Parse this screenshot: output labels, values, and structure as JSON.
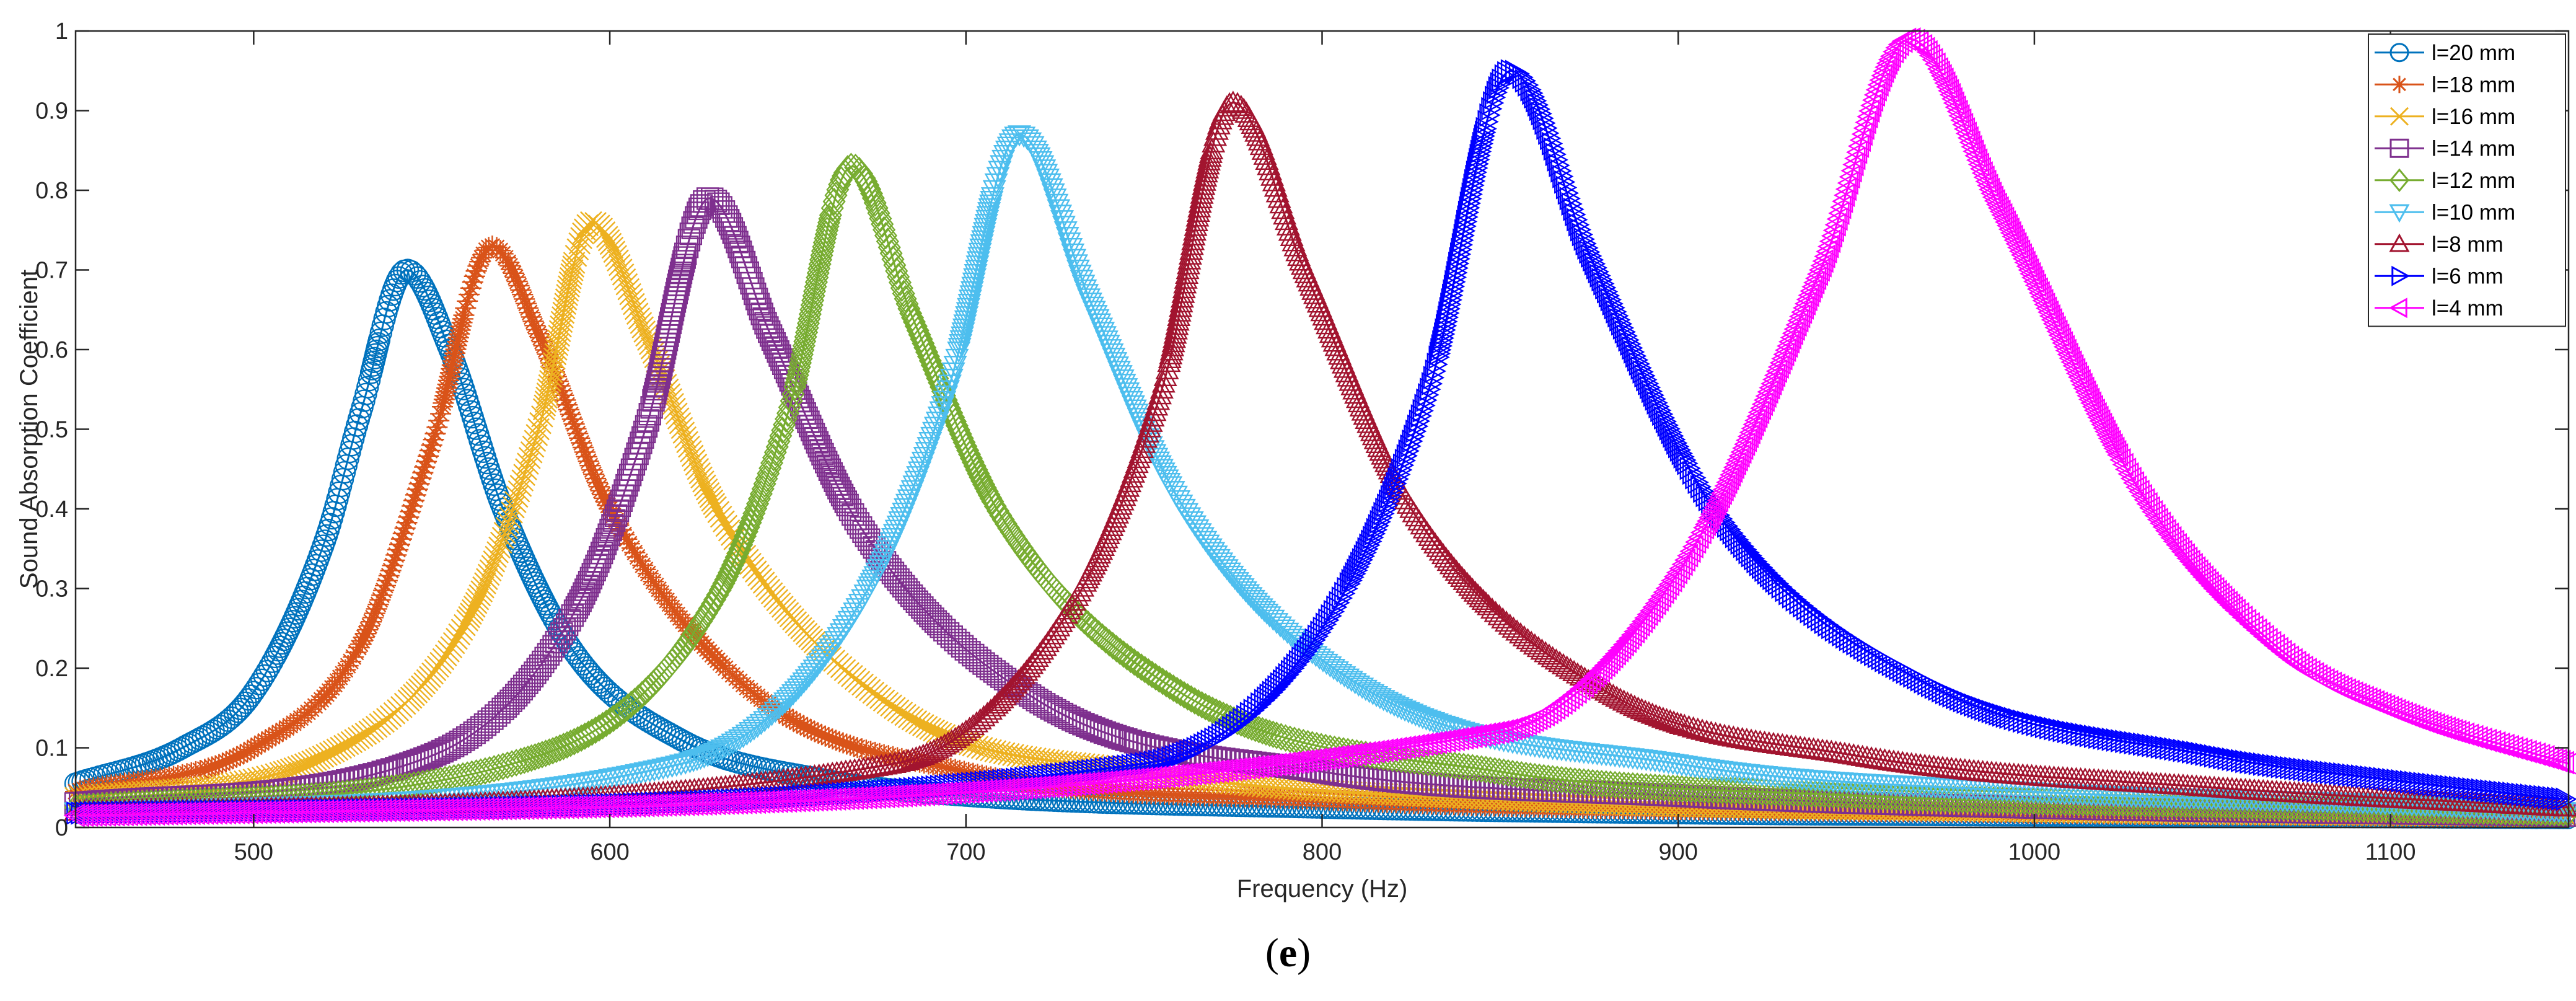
{
  "caption": {
    "open": "(",
    "letter": "e",
    "close": ")"
  },
  "chart_data": {
    "type": "line",
    "title": "",
    "xlabel": "Frequency (Hz)",
    "ylabel": "Sound Absorption Coefficient",
    "xlim": [
      450,
      1150
    ],
    "ylim": [
      0,
      1
    ],
    "xticks": [
      500,
      600,
      700,
      800,
      900,
      1000,
      1100
    ],
    "yticks": [
      0,
      0.1,
      0.2,
      0.3,
      0.4,
      0.5,
      0.6,
      0.7,
      0.8,
      0.9,
      1
    ],
    "xtick_labels": [
      "500",
      "600",
      "700",
      "800",
      "900",
      "1000",
      "1100"
    ],
    "ytick_labels": [
      "0",
      "0.1",
      "0.2",
      "0.3",
      "0.4",
      "0.5",
      "0.6",
      "0.7",
      "0.8",
      "0.9",
      "1"
    ],
    "grid": false,
    "legend_position": "top-right",
    "series": [
      {
        "name": "l=20 mm",
        "color": "#0072BD",
        "marker": "circle",
        "peak_x": 543,
        "peak_y": 0.7,
        "start_y": 0.055,
        "end_y": 0.012,
        "x": [
          450,
          480,
          500,
          520,
          530,
          543,
          555,
          570,
          590,
          620,
          660,
          700,
          800,
          900,
          1000,
          1150
        ],
        "y": [
          0.055,
          0.1,
          0.17,
          0.36,
          0.52,
          0.7,
          0.6,
          0.4,
          0.22,
          0.11,
          0.06,
          0.04,
          0.025,
          0.018,
          0.015,
          0.012
        ]
      },
      {
        "name": "l=18 mm",
        "color": "#D95319",
        "marker": "asterisk",
        "peak_x": 567,
        "peak_y": 0.73,
        "start_y": 0.045,
        "end_y": 0.013,
        "x": [
          450,
          500,
          530,
          550,
          567,
          580,
          600,
          640,
          700,
          800,
          1000,
          1150
        ],
        "y": [
          0.045,
          0.1,
          0.23,
          0.48,
          0.73,
          0.62,
          0.4,
          0.17,
          0.07,
          0.035,
          0.018,
          0.013
        ]
      },
      {
        "name": "l=16 mm",
        "color": "#EDB120",
        "marker": "x",
        "peak_x": 595,
        "peak_y": 0.76,
        "start_y": 0.037,
        "end_y": 0.014,
        "x": [
          450,
          520,
          560,
          580,
          595,
          610,
          630,
          680,
          750,
          850,
          1000,
          1150
        ],
        "y": [
          0.037,
          0.09,
          0.26,
          0.5,
          0.76,
          0.62,
          0.4,
          0.15,
          0.07,
          0.035,
          0.02,
          0.014
        ]
      },
      {
        "name": "l=14 mm",
        "color": "#7E2F8E",
        "marker": "square",
        "peak_x": 628,
        "peak_y": 0.79,
        "start_y": 0.03,
        "end_y": 0.015,
        "x": [
          450,
          550,
          590,
          610,
          628,
          645,
          670,
          720,
          800,
          900,
          1000,
          1150
        ],
        "y": [
          0.03,
          0.09,
          0.27,
          0.5,
          0.79,
          0.62,
          0.38,
          0.16,
          0.07,
          0.04,
          0.025,
          0.015
        ]
      },
      {
        "name": "l=12 mm",
        "color": "#77AC30",
        "marker": "diamond",
        "peak_x": 668,
        "peak_y": 0.83,
        "start_y": 0.025,
        "end_y": 0.018,
        "x": [
          450,
          580,
          630,
          650,
          668,
          685,
          710,
          760,
          850,
          950,
          1050,
          1150
        ],
        "y": [
          0.025,
          0.09,
          0.29,
          0.52,
          0.83,
          0.64,
          0.39,
          0.17,
          0.07,
          0.04,
          0.028,
          0.018
        ]
      },
      {
        "name": "l=10 mm",
        "color": "#4DBEEE",
        "marker": "triangle-down",
        "peak_x": 715,
        "peak_y": 0.87,
        "start_y": 0.02,
        "end_y": 0.02,
        "x": [
          450,
          620,
          670,
          695,
          715,
          735,
          760,
          810,
          900,
          1000,
          1100,
          1150
        ],
        "y": [
          0.02,
          0.08,
          0.28,
          0.55,
          0.87,
          0.66,
          0.41,
          0.18,
          0.08,
          0.045,
          0.03,
          0.02
        ]
      },
      {
        "name": "l=8 mm",
        "color": "#A2142F",
        "marker": "triangle-up",
        "peak_x": 775,
        "peak_y": 0.91,
        "start_y": 0.02,
        "end_y": 0.025,
        "x": [
          450,
          680,
          730,
          755,
          775,
          795,
          825,
          880,
          950,
          1050,
          1150
        ],
        "y": [
          0.02,
          0.08,
          0.28,
          0.55,
          0.91,
          0.7,
          0.4,
          0.17,
          0.09,
          0.05,
          0.025
        ]
      },
      {
        "name": "l=6 mm",
        "color": "#0000FF",
        "marker": "triangle-right",
        "peak_x": 853,
        "peak_y": 0.95,
        "start_y": 0.018,
        "end_y": 0.035,
        "x": [
          450,
          750,
          800,
          830,
          853,
          875,
          910,
          970,
          1050,
          1100,
          1150
        ],
        "y": [
          0.018,
          0.08,
          0.25,
          0.55,
          0.95,
          0.72,
          0.4,
          0.18,
          0.09,
          0.06,
          0.035
        ]
      },
      {
        "name": "l=4 mm",
        "color": "#FF00FF",
        "marker": "triangle-left",
        "peak_x": 965,
        "peak_y": 0.99,
        "start_y": 0.015,
        "end_y": 0.08,
        "x": [
          450,
          850,
          900,
          940,
          965,
          990,
          1030,
          1070,
          1100,
          1150
        ],
        "y": [
          0.015,
          0.12,
          0.32,
          0.7,
          0.99,
          0.78,
          0.42,
          0.22,
          0.15,
          0.08
        ]
      }
    ]
  }
}
